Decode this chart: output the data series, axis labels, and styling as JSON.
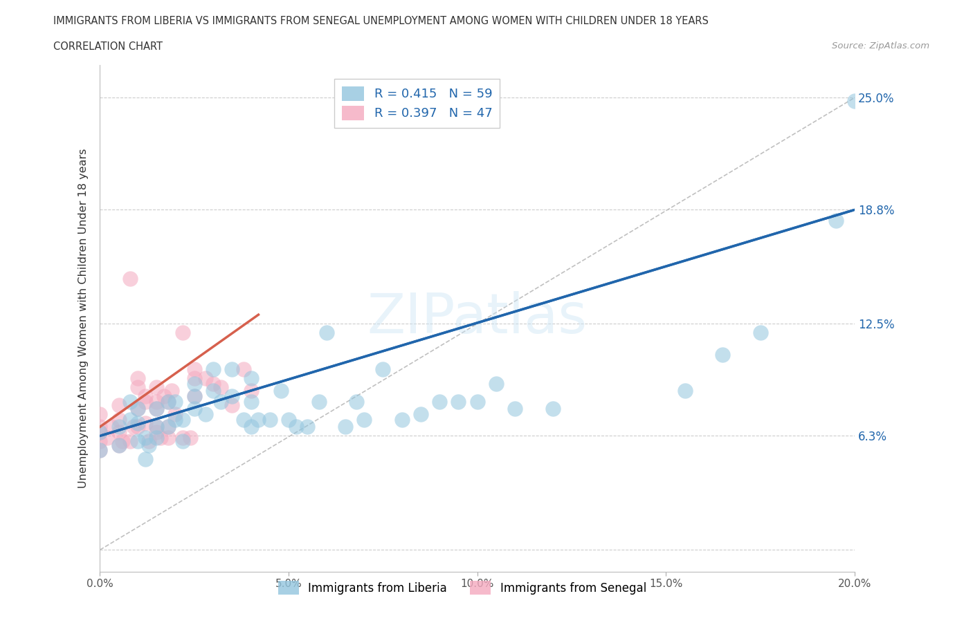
{
  "title_line1": "IMMIGRANTS FROM LIBERIA VS IMMIGRANTS FROM SENEGAL UNEMPLOYMENT AMONG WOMEN WITH CHILDREN UNDER 18 YEARS",
  "title_line2": "CORRELATION CHART",
  "source_text": "Source: ZipAtlas.com",
  "ylabel": "Unemployment Among Women with Children Under 18 years",
  "xmin": 0.0,
  "xmax": 0.2,
  "ymin": -0.012,
  "ymax": 0.268,
  "yticks": [
    0.0,
    0.063,
    0.125,
    0.188,
    0.25
  ],
  "ytick_labels": [
    "",
    "6.3%",
    "12.5%",
    "18.8%",
    "25.0%"
  ],
  "xticks": [
    0.0,
    0.05,
    0.1,
    0.15,
    0.2
  ],
  "xtick_labels": [
    "0.0%",
    "5.0%",
    "10.0%",
    "15.0%",
    "20.0%"
  ],
  "liberia_color": "#92c5de",
  "senegal_color": "#f4a9bf",
  "liberia_line_color": "#2166ac",
  "senegal_line_color": "#d6604d",
  "liberia_R": 0.415,
  "liberia_N": 59,
  "senegal_R": 0.397,
  "senegal_N": 47,
  "watermark": "ZIPatlas",
  "liberia_scatter_x": [
    0.0,
    0.0,
    0.005,
    0.005,
    0.008,
    0.008,
    0.01,
    0.01,
    0.01,
    0.012,
    0.012,
    0.013,
    0.015,
    0.015,
    0.015,
    0.018,
    0.018,
    0.02,
    0.02,
    0.022,
    0.022,
    0.025,
    0.025,
    0.025,
    0.028,
    0.03,
    0.03,
    0.032,
    0.035,
    0.035,
    0.038,
    0.04,
    0.04,
    0.04,
    0.042,
    0.045,
    0.048,
    0.05,
    0.052,
    0.055,
    0.058,
    0.06,
    0.065,
    0.068,
    0.07,
    0.075,
    0.08,
    0.085,
    0.09,
    0.095,
    0.1,
    0.105,
    0.11,
    0.12,
    0.155,
    0.165,
    0.175,
    0.195,
    0.2
  ],
  "liberia_scatter_y": [
    0.065,
    0.055,
    0.068,
    0.058,
    0.072,
    0.082,
    0.06,
    0.07,
    0.078,
    0.05,
    0.062,
    0.058,
    0.062,
    0.068,
    0.078,
    0.068,
    0.082,
    0.072,
    0.082,
    0.072,
    0.06,
    0.078,
    0.085,
    0.092,
    0.075,
    0.088,
    0.1,
    0.082,
    0.085,
    0.1,
    0.072,
    0.068,
    0.082,
    0.095,
    0.072,
    0.072,
    0.088,
    0.072,
    0.068,
    0.068,
    0.082,
    0.12,
    0.068,
    0.082,
    0.072,
    0.1,
    0.072,
    0.075,
    0.082,
    0.082,
    0.082,
    0.092,
    0.078,
    0.078,
    0.088,
    0.108,
    0.12,
    0.182,
    0.248
  ],
  "senegal_scatter_x": [
    0.0,
    0.0,
    0.0,
    0.0,
    0.0,
    0.002,
    0.003,
    0.005,
    0.005,
    0.005,
    0.005,
    0.006,
    0.008,
    0.008,
    0.009,
    0.01,
    0.01,
    0.01,
    0.01,
    0.012,
    0.012,
    0.012,
    0.013,
    0.015,
    0.015,
    0.015,
    0.015,
    0.015,
    0.016,
    0.017,
    0.018,
    0.018,
    0.018,
    0.019,
    0.02,
    0.022,
    0.022,
    0.024,
    0.025,
    0.025,
    0.025,
    0.028,
    0.03,
    0.032,
    0.035,
    0.038,
    0.04
  ],
  "senegal_scatter_y": [
    0.055,
    0.06,
    0.065,
    0.068,
    0.075,
    0.062,
    0.068,
    0.058,
    0.065,
    0.072,
    0.08,
    0.06,
    0.06,
    0.15,
    0.068,
    0.068,
    0.078,
    0.09,
    0.095,
    0.07,
    0.082,
    0.085,
    0.06,
    0.065,
    0.068,
    0.078,
    0.082,
    0.09,
    0.062,
    0.085,
    0.062,
    0.068,
    0.082,
    0.088,
    0.075,
    0.062,
    0.12,
    0.062,
    0.085,
    0.095,
    0.1,
    0.095,
    0.092,
    0.09,
    0.08,
    0.1,
    0.088
  ]
}
